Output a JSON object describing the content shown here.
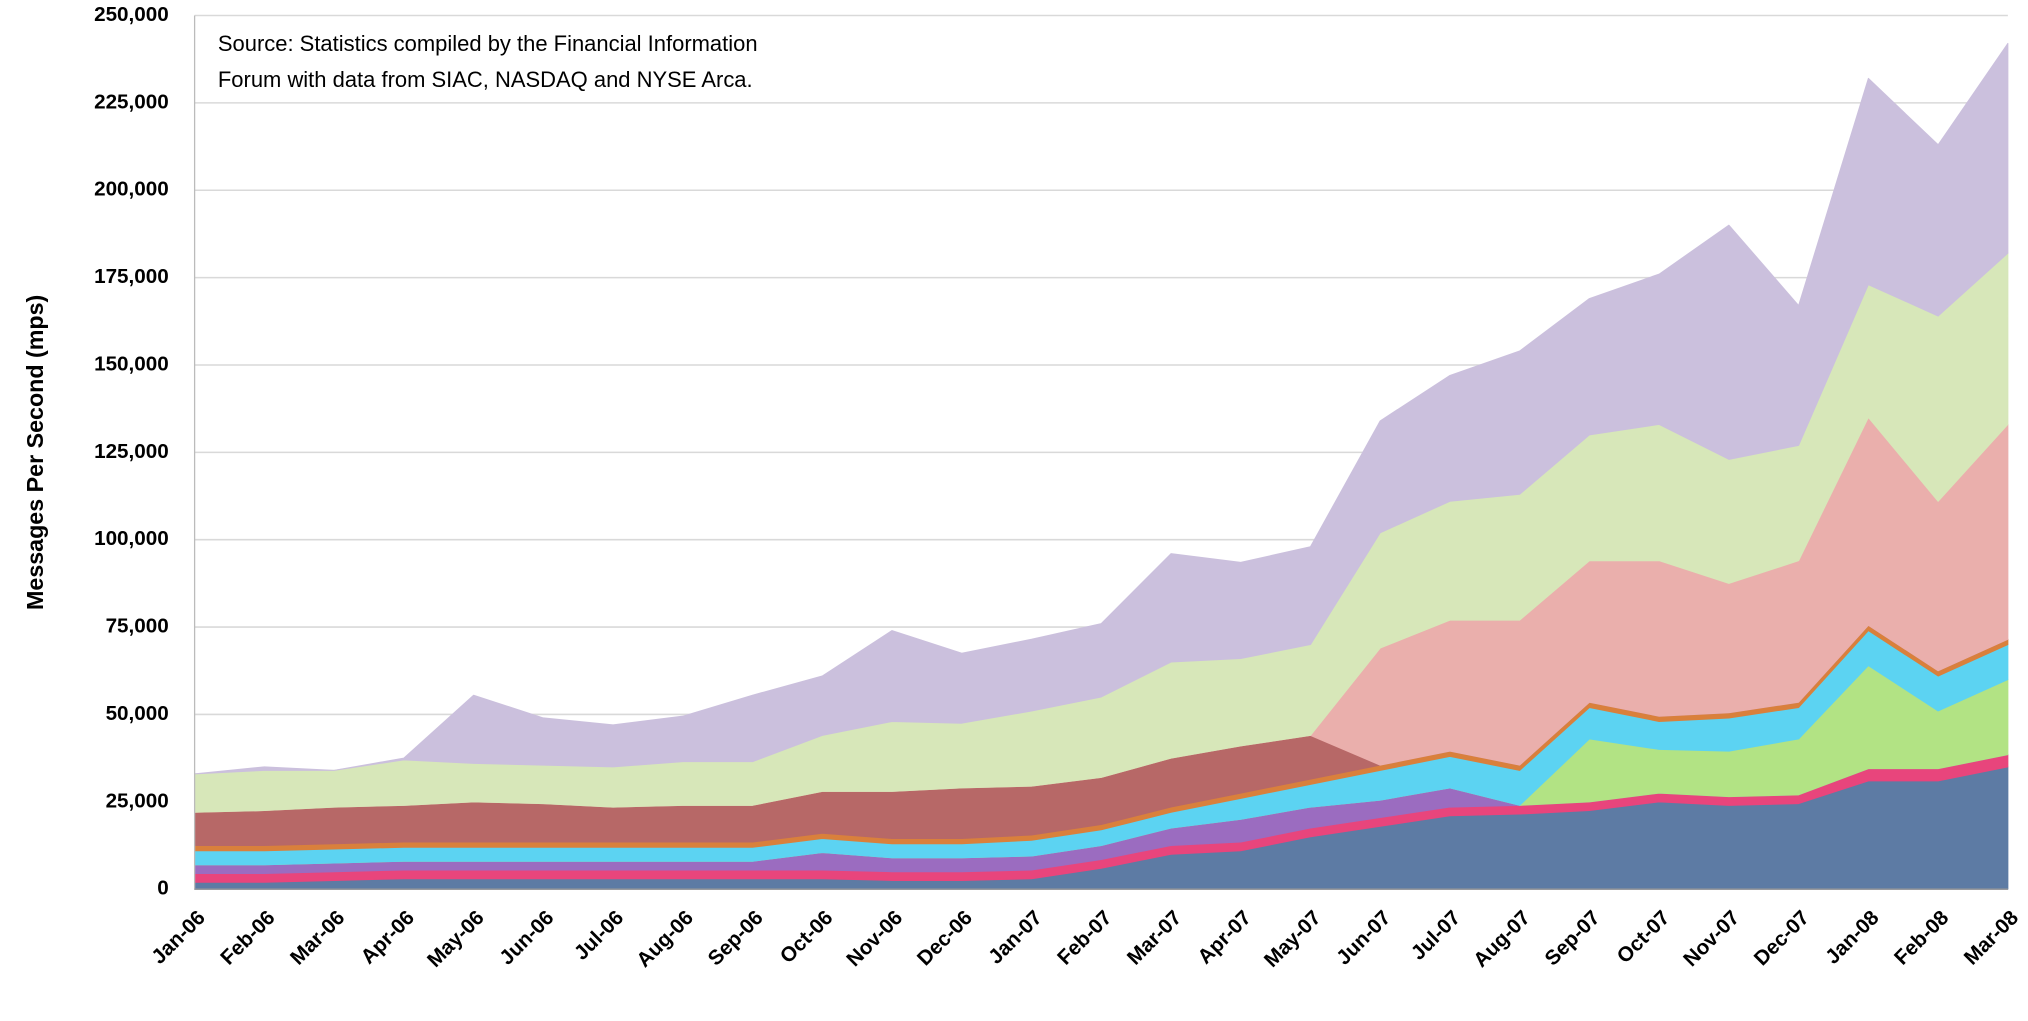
{
  "chart_data": {
    "type": "stacked_area",
    "ylabel": "Messages Per Second (mps)",
    "annotation": [
      "Source: Statistics compiled by the Financial Information",
      "Forum with data from SIAC, NASDAQ and NYSE Arca."
    ],
    "categories": [
      "Jan-06",
      "Feb-06",
      "Mar-06",
      "Apr-06",
      "May-06",
      "Jun-06",
      "Jul-06",
      "Aug-06",
      "Sep-06",
      "Oct-06",
      "Nov-06",
      "Dec-06",
      "Jan-07",
      "Feb-07",
      "Mar-07",
      "Apr-07",
      "May-07",
      "Jun-07",
      "Jul-07",
      "Aug-07",
      "Sep-07",
      "Oct-07",
      "Nov-07",
      "Dec-07",
      "Jan-08",
      "Feb-08",
      "Mar-08"
    ],
    "ylim": [
      0,
      250000
    ],
    "yticks": [
      0,
      {
        "value": 25000,
        "label": "25,000"
      },
      {
        "value": 50000,
        "label": "50,000"
      },
      {
        "value": 75000,
        "label": "75,000"
      },
      {
        "value": 100000,
        "label": "100,000"
      },
      {
        "value": 125000,
        "label": "125,000"
      },
      {
        "value": 150000,
        "label": "150,000"
      },
      {
        "value": 175000,
        "label": "175,000"
      },
      {
        "value": 200000,
        "label": "200,000"
      },
      {
        "value": 225000,
        "label": "225,000"
      },
      {
        "value": 250000,
        "label": "250,000"
      }
    ],
    "grid": true,
    "series": [
      {
        "color": "#5d7ba4",
        "values": [
          2000,
          2000,
          2500,
          3000,
          3000,
          3000,
          3000,
          3000,
          3000,
          3000,
          2500,
          2500,
          3000,
          6000,
          10000,
          11000,
          15000,
          18000,
          21000,
          21500,
          22500,
          25000,
          24000,
          24500,
          31000,
          31000,
          35000
        ]
      },
      {
        "color": "#e8457c",
        "values": [
          2500,
          2500,
          2500,
          2500,
          2500,
          2500,
          2500,
          2500,
          2500,
          2500,
          2500,
          2500,
          2500,
          2500,
          2500,
          2500,
          2500,
          2500,
          2500,
          2500,
          2500,
          2500,
          2500,
          2500,
          3500,
          3500,
          3500
        ]
      },
      {
        "color": "#9b6cc0",
        "values": [
          2500,
          2500,
          2500,
          2500,
          2500,
          2500,
          2500,
          2500,
          2500,
          5000,
          4000,
          4000,
          4000,
          4000,
          5000,
          6500,
          6000,
          5000,
          5500,
          0,
          0,
          0,
          0,
          0,
          0,
          0,
          0
        ]
      },
      {
        "color": "#b2e384",
        "values": [
          0,
          0,
          0,
          0,
          0,
          0,
          0,
          0,
          0,
          0,
          0,
          0,
          0,
          0,
          0,
          0,
          0,
          0,
          0,
          0,
          18000,
          12500,
          13000,
          16000,
          29500,
          16500,
          21500
        ]
      },
      {
        "color": "#5cd3f2",
        "values": [
          4000,
          4000,
          4000,
          4000,
          4000,
          4000,
          4000,
          4000,
          4000,
          4000,
          4000,
          4000,
          4500,
          4500,
          4500,
          6000,
          6500,
          8500,
          9000,
          10000,
          9000,
          8000,
          9500,
          9000,
          10000,
          10000,
          10000
        ]
      },
      {
        "color": "#d9803c",
        "values": [
          1500,
          1500,
          1500,
          1500,
          1500,
          1500,
          1500,
          1500,
          1500,
          1500,
          1500,
          1500,
          1500,
          1500,
          1500,
          1500,
          1500,
          1500,
          1500,
          1500,
          1500,
          1500,
          1500,
          1500,
          1500,
          1500,
          1500
        ]
      },
      {
        "color": "#b76867",
        "values": [
          9500,
          10000,
          10500,
          10500,
          11500,
          11000,
          10000,
          10500,
          10500,
          12000,
          13500,
          14500,
          14000,
          13500,
          14000,
          13500,
          12500,
          0,
          0,
          0,
          0,
          0,
          0,
          0,
          0,
          0,
          0
        ]
      },
      {
        "color": "#eaafac",
        "values": [
          0,
          0,
          0,
          0,
          0,
          0,
          0,
          0,
          0,
          0,
          0,
          0,
          0,
          0,
          0,
          0,
          0,
          33500,
          37500,
          41500,
          40500,
          44500,
          37000,
          40500,
          59500,
          48500,
          61500
        ]
      },
      {
        "color": "#d7e7b9",
        "values": [
          11000,
          11500,
          10500,
          13000,
          11000,
          11000,
          11500,
          12500,
          12500,
          16000,
          20000,
          18500,
          21500,
          23000,
          27500,
          25000,
          26000,
          33000,
          34000,
          36000,
          36000,
          39000,
          35500,
          33000,
          38000,
          53000,
          49000
        ]
      },
      {
        "color": "#cbc0dd",
        "values": [
          0,
          1000,
          0,
          500,
          19500,
          13500,
          12000,
          13000,
          19000,
          17000,
          26000,
          20000,
          20500,
          21000,
          31000,
          27500,
          28000,
          32000,
          36000,
          41000,
          39000,
          43000,
          67000,
          40000,
          59000,
          49000,
          60000
        ]
      }
    ]
  }
}
